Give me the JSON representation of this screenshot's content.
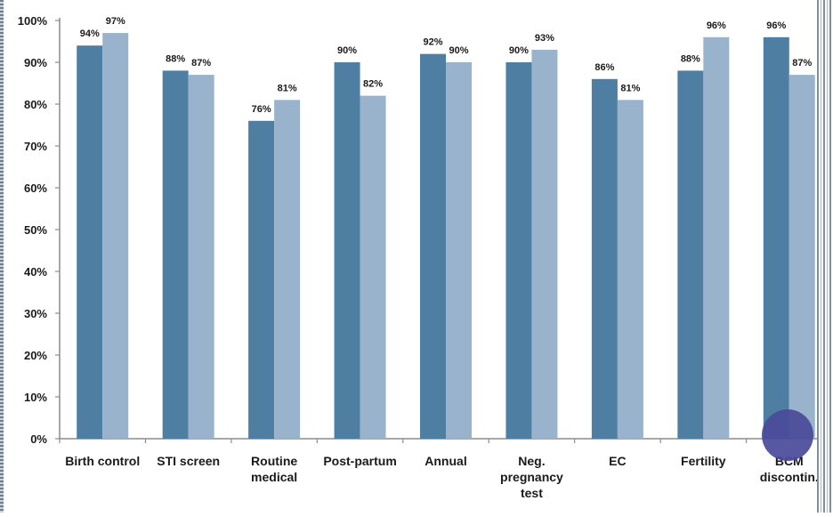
{
  "chart_data": {
    "type": "bar",
    "categories": [
      [
        "Birth control"
      ],
      [
        "STI screen"
      ],
      [
        "Routine",
        "medical"
      ],
      [
        "Post-partum"
      ],
      [
        "Annual"
      ],
      [
        "Neg.",
        "pregnancy",
        "test"
      ],
      [
        "EC"
      ],
      [
        "Fertility"
      ],
      [
        "BCM",
        "discontin."
      ]
    ],
    "series": [
      {
        "values": [
          94,
          88,
          76,
          90,
          92,
          90,
          86,
          88,
          96
        ],
        "labels": [
          "94%",
          "88%",
          "76%",
          "90%",
          "92%",
          "90%",
          "86%",
          "88%",
          "96%"
        ],
        "color": "#4e7fa2"
      },
      {
        "values": [
          97,
          87,
          81,
          82,
          90,
          93,
          81,
          96,
          87
        ],
        "labels": [
          "97%",
          "87%",
          "81%",
          "82%",
          "90%",
          "93%",
          "81%",
          "96%",
          "87%"
        ],
        "color": "#9ab3cc"
      }
    ],
    "yticks": [
      "0%",
      "10%",
      "20%",
      "30%",
      "40%",
      "50%",
      "60%",
      "70%",
      "80%",
      "90%",
      "100%"
    ],
    "ylim": [
      0,
      100
    ],
    "title": "",
    "xlabel": "",
    "ylabel": "",
    "grid": false,
    "legend": "none"
  },
  "decoration": {
    "circle_color": "#4a4a9a"
  }
}
